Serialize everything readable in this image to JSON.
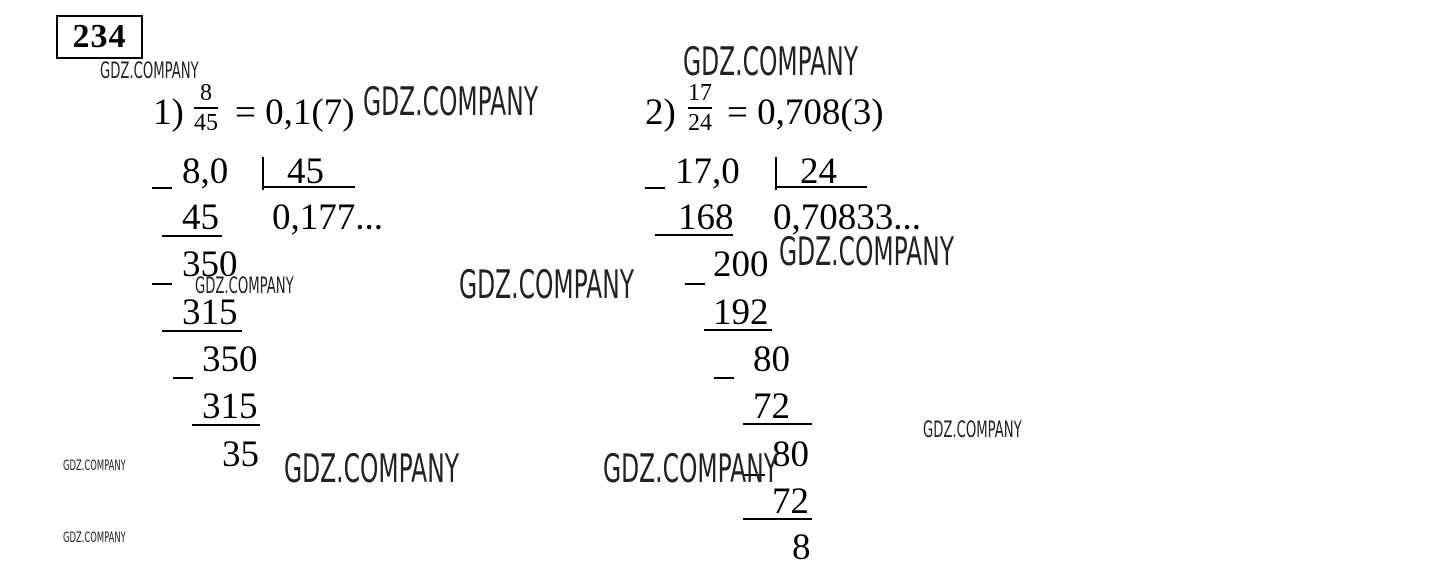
{
  "exercise_number": "234",
  "watermark": "GDZ.COMPANY",
  "part1": {
    "label": "1)",
    "numerator": "8",
    "denominator": "45",
    "result": "= 0,1(7)",
    "dividend": "8,0",
    "divisor": "45",
    "quotient": "0,177...",
    "steps": [
      "45",
      "350",
      "315",
      "350",
      "315",
      "35"
    ]
  },
  "part2": {
    "label": "2)",
    "numerator": "17",
    "denominator": "24",
    "result": "= 0,708(3)",
    "dividend": "17,0",
    "divisor": "24",
    "quotient": "0,70833...",
    "steps": [
      "168",
      "200",
      "192",
      "80",
      "72",
      "80",
      "72",
      "8"
    ]
  }
}
